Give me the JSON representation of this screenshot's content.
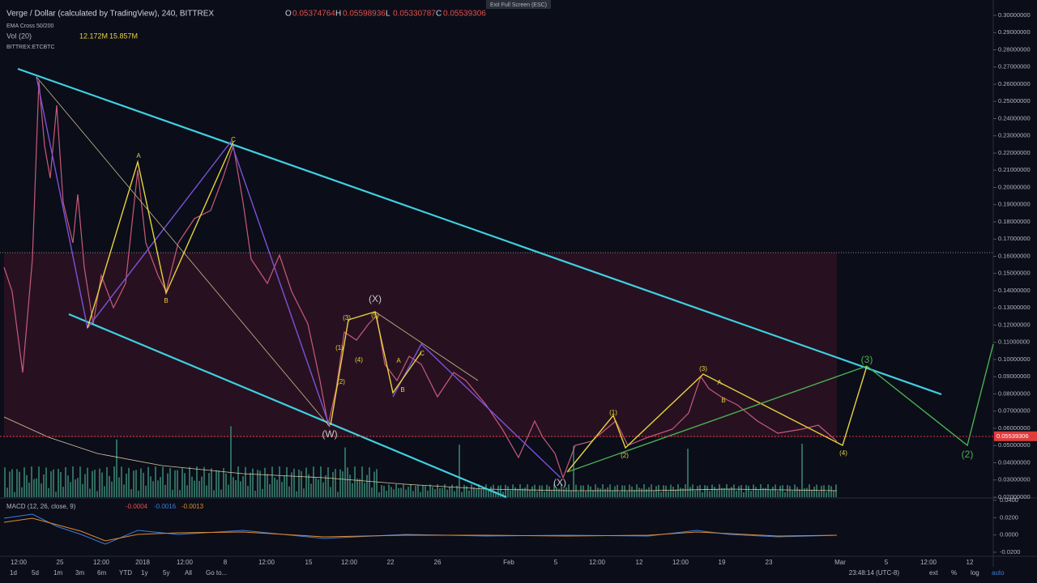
{
  "header": {
    "title": "Verge / Dollar (calculated by TradingView), 240, BITTREX",
    "ohlc": [
      {
        "key": "O",
        "value": "0.05374764"
      },
      {
        "key": "H",
        "value": "0.05598936"
      },
      {
        "key": "L",
        "value": "0.05330787"
      },
      {
        "key": "C",
        "value": "0.05539306"
      }
    ],
    "indicators": [
      "EMA Cross 50/200",
      "Vol (20)",
      "BITTREX:ETCBTC"
    ],
    "volume_values": [
      "12.172M",
      "15.857M"
    ],
    "fullscreen_hint": "Exit Full Screen (ESC)"
  },
  "price_axis": {
    "ticks": [
      {
        "value": 0.3,
        "label": "0.30000000"
      },
      {
        "value": 0.29,
        "label": "0.29000000"
      },
      {
        "value": 0.28,
        "label": "0.28000000"
      },
      {
        "value": 0.27,
        "label": "0.27000000"
      },
      {
        "value": 0.26,
        "label": "0.26000000"
      },
      {
        "value": 0.25,
        "label": "0.25000000"
      },
      {
        "value": 0.24,
        "label": "0.24000000"
      },
      {
        "value": 0.23,
        "label": "0.23000000"
      },
      {
        "value": 0.22,
        "label": "0.22000000"
      },
      {
        "value": 0.21,
        "label": "0.21000000"
      },
      {
        "value": 0.2,
        "label": "0.20000000"
      },
      {
        "value": 0.19,
        "label": "0.19000000"
      },
      {
        "value": 0.18,
        "label": "0.18000000"
      },
      {
        "value": 0.17,
        "label": "0.17000000"
      },
      {
        "value": 0.16,
        "label": "0.16000000"
      },
      {
        "value": 0.15,
        "label": "0.15000000"
      },
      {
        "value": 0.14,
        "label": "0.14000000"
      },
      {
        "value": 0.13,
        "label": "0.13000000"
      },
      {
        "value": 0.12,
        "label": "0.12000000"
      },
      {
        "value": 0.11,
        "label": "0.11000000"
      },
      {
        "value": 0.1,
        "label": "0.10000000"
      },
      {
        "value": 0.09,
        "label": "0.09000000"
      },
      {
        "value": 0.08,
        "label": "0.08000000"
      },
      {
        "value": 0.07,
        "label": "0.07000000"
      },
      {
        "value": 0.06,
        "label": "0.06000000"
      },
      {
        "value": 0.05,
        "label": "0.05000000"
      },
      {
        "value": 0.04,
        "label": "0.04000000"
      },
      {
        "value": 0.03,
        "label": "0.03000000"
      },
      {
        "value": 0.02,
        "label": "0.02000000"
      }
    ],
    "range": [
      0.02,
      0.3
    ],
    "current_price": {
      "value": 0.05539306,
      "label": "0.05539306"
    }
  },
  "time_axis": [
    "12:00",
    "25",
    "12:00",
    "2018",
    "12:00",
    "8",
    "12:00",
    "15",
    "12:00",
    "22",
    "26",
    "Feb",
    "5",
    "12:00",
    "12",
    "12:00",
    "19",
    "23",
    "Mar",
    "5",
    "12:00",
    "12"
  ],
  "macd": {
    "title": "MACD (12, 26, close, 9)",
    "values": [
      "-0.0004",
      "-0.0016",
      "-0.0013"
    ],
    "ticks": [
      {
        "value": 0.04,
        "label": "0.0400"
      },
      {
        "value": 0.02,
        "label": "0.0200"
      },
      {
        "value": 0,
        "label": "0.0000"
      },
      {
        "value": -0.02,
        "label": "-0.0200"
      }
    ],
    "range": [
      -0.02,
      0.04
    ]
  },
  "wave_labels": [
    "(W)",
    "(X)",
    "(X)",
    "(3)",
    "(2)",
    "A",
    "B",
    "C",
    "(1)",
    "(2)",
    "(3)",
    "(4)",
    "(5)",
    "A",
    "B",
    "C",
    "(1)",
    "(2)",
    "(3)",
    "(4)",
    "A",
    "B"
  ],
  "toolbar": {
    "ranges": [
      "1d",
      "5d",
      "1m",
      "3m",
      "6m",
      "YTD",
      "1y",
      "5y",
      "All",
      "Go to..."
    ],
    "clock": "23:48:14 (UTC-8)",
    "options": [
      "ext",
      "%",
      "log",
      "auto"
    ]
  }
}
